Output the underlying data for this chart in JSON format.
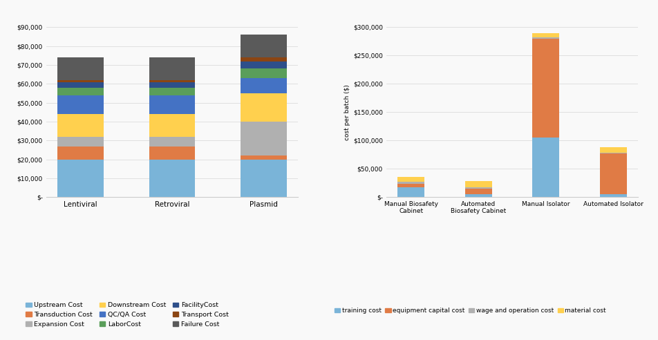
{
  "left": {
    "categories": [
      "Lentiviral",
      "Retroviral",
      "Plasmid"
    ],
    "ylim": [
      0,
      90000
    ],
    "yticks": [
      0,
      10000,
      20000,
      30000,
      40000,
      50000,
      60000,
      70000,
      80000,
      90000
    ],
    "ytick_labels": [
      "$-",
      "$10,000",
      "$20,000",
      "$30,000",
      "$40,000",
      "$50,000",
      "$60,000",
      "$70,000",
      "$80,000",
      "$90,000"
    ],
    "series": [
      {
        "label": "Upstream Cost",
        "color": "#7ab4d8",
        "values": [
          20000,
          20000,
          20000
        ]
      },
      {
        "label": "Transduction Cost",
        "color": "#e07b45",
        "values": [
          7000,
          7000,
          2000
        ]
      },
      {
        "label": "Expansion Cost",
        "color": "#b0b0b0",
        "values": [
          5000,
          5000,
          18000
        ]
      },
      {
        "label": "Downstream Cost",
        "color": "#ffd04e",
        "values": [
          12000,
          12000,
          15000
        ]
      },
      {
        "label": "QC/QA Cost",
        "color": "#4472c4",
        "values": [
          10000,
          10000,
          8000
        ]
      },
      {
        "label": "LaborCost",
        "color": "#5a9e5a",
        "values": [
          4000,
          4000,
          5000
        ]
      },
      {
        "label": "FacilityCost",
        "color": "#2e4f8a",
        "values": [
          3000,
          3000,
          4000
        ]
      },
      {
        "label": "Transport Cost",
        "color": "#8b4513",
        "values": [
          1000,
          1000,
          2000
        ]
      },
      {
        "label": "Failure Cost",
        "color": "#5a5a5a",
        "values": [
          12000,
          12000,
          12000
        ]
      }
    ]
  },
  "right": {
    "categories": [
      "Manual Biosafety\nCabinet",
      "Automated\nBiosafety Cabinet",
      "Manual Isolator",
      "Automated Isolator"
    ],
    "ylim": [
      0,
      300000
    ],
    "yticks": [
      0,
      50000,
      100000,
      150000,
      200000,
      250000,
      300000
    ],
    "ytick_labels": [
      "$-",
      "$50,000",
      "$100,000",
      "$150,000",
      "$200,000",
      "$250,000",
      "$300,000"
    ],
    "ylabel": "cost per batch ($)",
    "series": [
      {
        "label": "training cost",
        "color": "#7ab4d8",
        "values": [
          17000,
          5000,
          105000,
          5000
        ]
      },
      {
        "label": "equipment capital cost",
        "color": "#e07b45",
        "values": [
          7000,
          10000,
          175000,
          72000
        ]
      },
      {
        "label": "wage and operation cost",
        "color": "#b0b0b0",
        "values": [
          3000,
          2000,
          2000,
          2000
        ]
      },
      {
        "label": "material cost",
        "color": "#ffd04e",
        "values": [
          9000,
          12000,
          8000,
          9000
        ]
      }
    ]
  },
  "bg_color": "#f9f9f9",
  "grid_color": "#e0e0e0"
}
